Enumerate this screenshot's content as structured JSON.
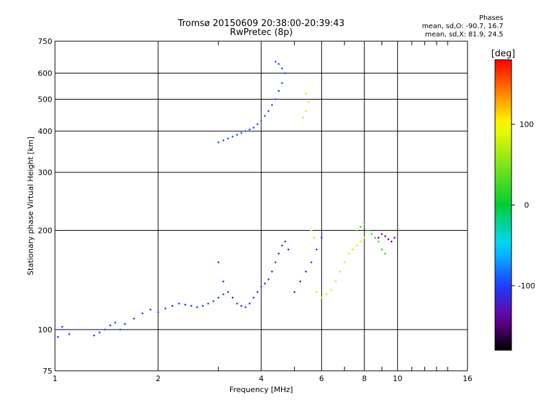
{
  "header": {
    "title_line1": "Tromsø 20150609 20:38:00-20:39:43",
    "title_line2": "RwPretec (8p)"
  },
  "phase_info": {
    "label": "Phases",
    "line1": "mean, sd,O: -90.7, 16.7",
    "line2": "mean, sd,X:  81.9, 24.5"
  },
  "colorbar": {
    "label": "[deg]",
    "ticks": [
      100,
      0,
      -100
    ],
    "range": [
      -180,
      180
    ]
  },
  "chart_data": {
    "type": "scatter",
    "title": "Tromsø 20150609 20:38:00-20:39:43",
    "subtitle": "RwPretec (8p)",
    "xlabel": "Frequency [MHz]",
    "ylabel": "Stationary phase Virtual Height [km]",
    "x_scale": "log",
    "y_scale": "log",
    "xlim": [
      1,
      16
    ],
    "ylim": [
      75,
      750
    ],
    "x_ticks": [
      1,
      2,
      4,
      6,
      8,
      10,
      16
    ],
    "y_ticks": [
      75,
      100,
      200,
      300,
      400,
      500,
      600,
      750
    ],
    "grid": true,
    "color_encoding": "phase [deg]",
    "groups": [
      {
        "name": "",
        "phase": -100,
        "points": [
          [
            1.0,
            100
          ],
          [
            1.02,
            95
          ],
          [
            1.05,
            102
          ],
          [
            1.1,
            97
          ],
          [
            1.3,
            96
          ],
          [
            1.35,
            98
          ],
          [
            1.4,
            100
          ],
          [
            1.45,
            103
          ],
          [
            1.5,
            105
          ],
          [
            1.55,
            100
          ],
          [
            1.6,
            104
          ],
          [
            1.7,
            108
          ],
          [
            1.8,
            112
          ],
          [
            1.9,
            115
          ],
          [
            2.0,
            113
          ],
          [
            2.1,
            116
          ],
          [
            2.2,
            118
          ],
          [
            2.3,
            120
          ],
          [
            2.4,
            119
          ],
          [
            2.5,
            118
          ],
          [
            2.6,
            117
          ],
          [
            2.7,
            118
          ],
          [
            2.8,
            120
          ],
          [
            2.9,
            122
          ],
          [
            3.0,
            125
          ],
          [
            3.1,
            128
          ]
        ]
      },
      {
        "name": "",
        "phase": -95,
        "points": [
          [
            3.0,
            370
          ],
          [
            3.1,
            375
          ],
          [
            3.2,
            380
          ],
          [
            3.3,
            385
          ],
          [
            3.4,
            390
          ],
          [
            3.5,
            395
          ],
          [
            3.6,
            400
          ],
          [
            3.7,
            405
          ],
          [
            3.8,
            410
          ],
          [
            3.9,
            420
          ],
          [
            4.0,
            430
          ],
          [
            4.1,
            445
          ],
          [
            4.2,
            460
          ],
          [
            4.3,
            480
          ],
          [
            4.4,
            500
          ],
          [
            4.5,
            530
          ],
          [
            4.6,
            560
          ],
          [
            4.7,
            600
          ],
          [
            4.6,
            620
          ],
          [
            4.5,
            640
          ],
          [
            4.4,
            650
          ]
        ]
      },
      {
        "name": "",
        "phase": -110,
        "points": [
          [
            3.0,
            160
          ],
          [
            3.1,
            140
          ],
          [
            3.2,
            130
          ],
          [
            3.3,
            125
          ],
          [
            3.4,
            120
          ],
          [
            3.5,
            118
          ],
          [
            3.6,
            117
          ],
          [
            3.7,
            120
          ],
          [
            3.8,
            125
          ],
          [
            3.9,
            130
          ],
          [
            4.0,
            135
          ],
          [
            4.1,
            138
          ],
          [
            4.2,
            142
          ],
          [
            4.3,
            150
          ],
          [
            4.4,
            160
          ],
          [
            4.5,
            170
          ],
          [
            4.6,
            180
          ],
          [
            4.7,
            185
          ],
          [
            4.8,
            175
          ],
          [
            5.0,
            130
          ],
          [
            5.2,
            140
          ],
          [
            5.4,
            150
          ],
          [
            5.6,
            160
          ],
          [
            5.8,
            175
          ],
          [
            6.0,
            190
          ]
        ]
      },
      {
        "name": "",
        "phase": 80,
        "points": [
          [
            5.3,
            440
          ],
          [
            5.4,
            460
          ],
          [
            5.5,
            490
          ],
          [
            5.4,
            520
          ],
          [
            5.6,
            200
          ],
          [
            5.7,
            190
          ],
          [
            5.8,
            130
          ],
          [
            6.0,
            125
          ],
          [
            6.2,
            128
          ],
          [
            6.4,
            132
          ],
          [
            6.6,
            140
          ],
          [
            6.8,
            150
          ],
          [
            7.0,
            160
          ],
          [
            7.2,
            170
          ],
          [
            7.4,
            175
          ],
          [
            7.6,
            180
          ],
          [
            7.8,
            185
          ],
          [
            8.0,
            190
          ]
        ]
      },
      {
        "name": "",
        "phase": 20,
        "points": [
          [
            7.6,
            200
          ],
          [
            7.8,
            205
          ],
          [
            8.0,
            210
          ],
          [
            8.2,
            200
          ],
          [
            8.4,
            195
          ],
          [
            8.6,
            190
          ],
          [
            8.8,
            185
          ],
          [
            9.0,
            175
          ],
          [
            9.2,
            170
          ]
        ]
      },
      {
        "name": "",
        "phase": -140,
        "points": [
          [
            8.8,
            190
          ],
          [
            9.0,
            195
          ],
          [
            9.2,
            192
          ],
          [
            9.4,
            188
          ],
          [
            9.6,
            185
          ],
          [
            9.8,
            190
          ]
        ]
      }
    ]
  }
}
